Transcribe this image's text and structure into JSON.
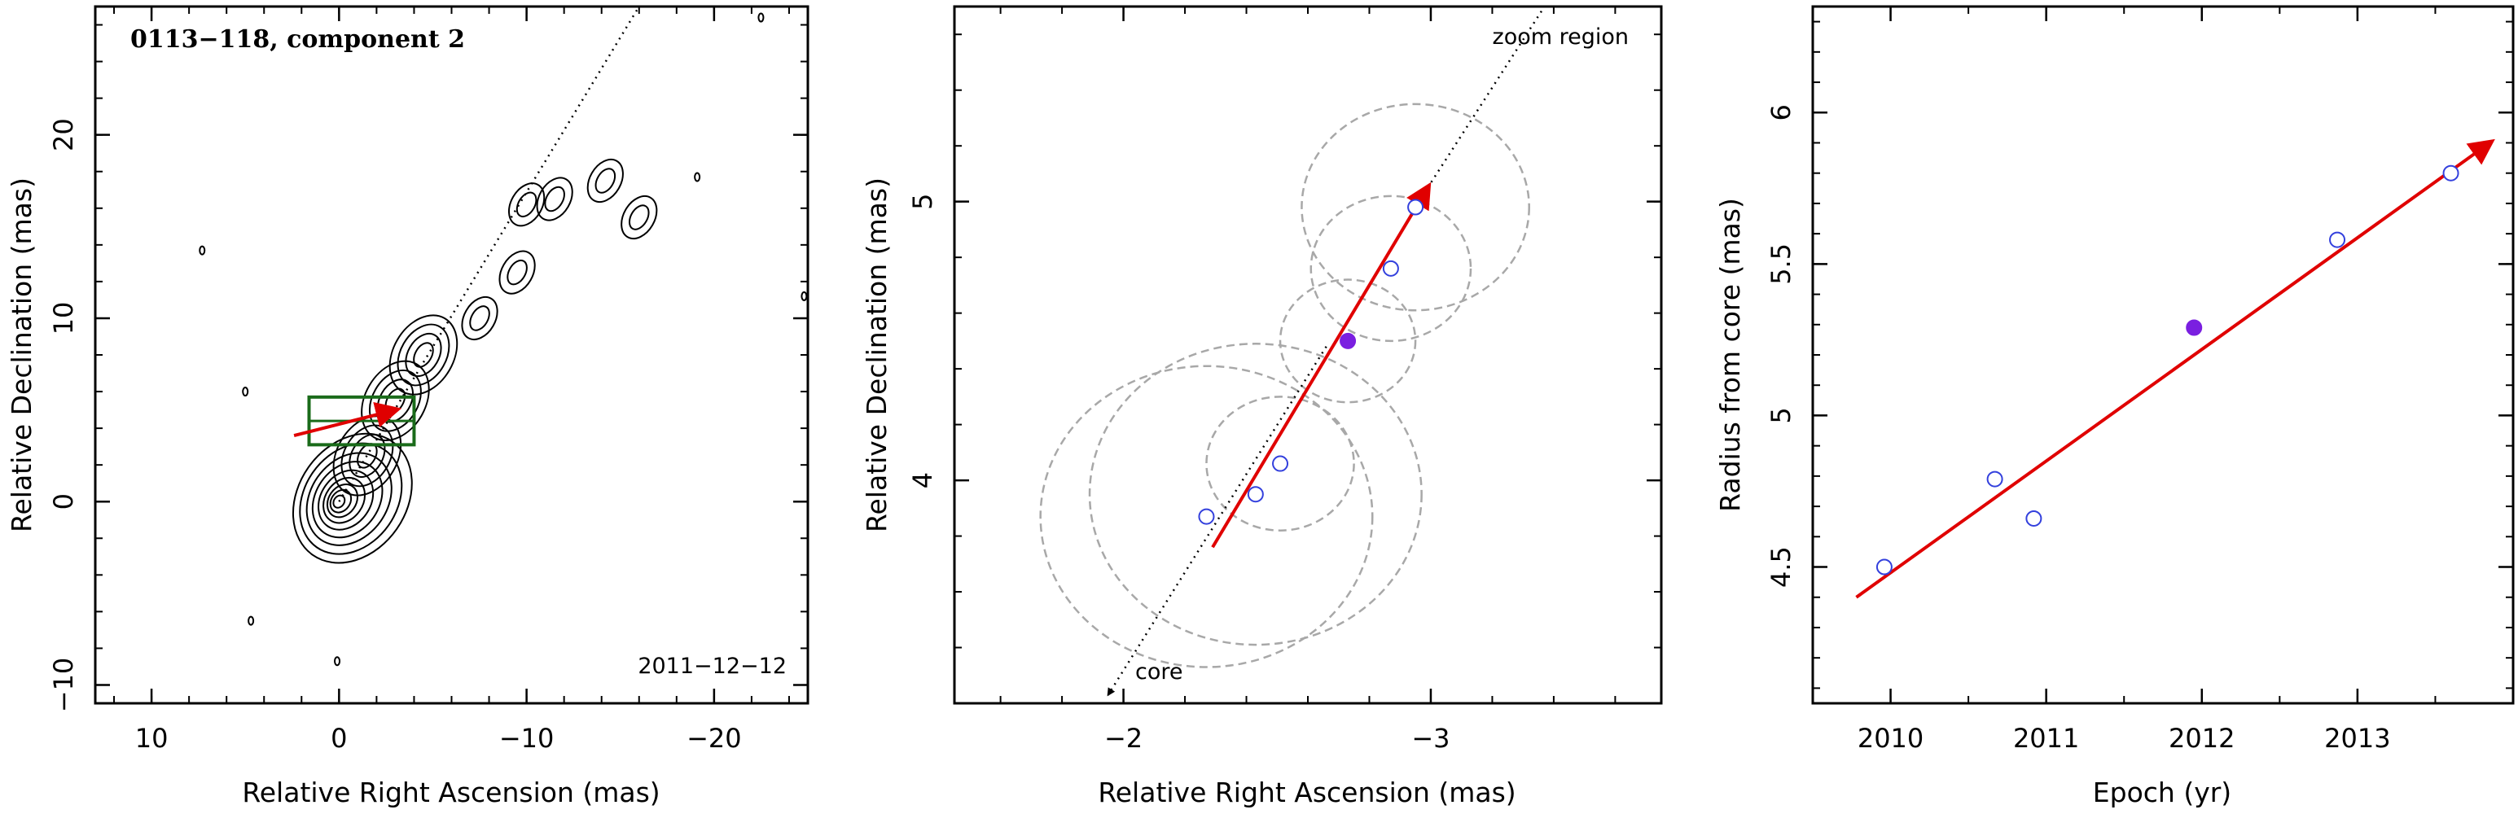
{
  "chart_data": [
    {
      "type": "contour",
      "title": "0113−118, component 2",
      "epoch_label": "2011−12−12",
      "xlabel": "Relative Right Ascension (mas)",
      "ylabel": "Relative Declination (mas)",
      "xlim": [
        13,
        -25
      ],
      "ylim": [
        -11,
        27
      ],
      "x_ticks": [
        10,
        0,
        -10,
        -20
      ],
      "x_tick_labels": [
        "10",
        "0",
        "−10",
        "−20"
      ],
      "y_ticks": [
        -10,
        0,
        10,
        20
      ],
      "y_tick_labels": [
        "−10",
        "0",
        "10",
        "20"
      ],
      "core_position": [
        0,
        0
      ],
      "jet_axis": {
        "from": [
          0,
          0
        ],
        "to": [
          -16,
          27
        ],
        "style": "dotted"
      },
      "zoom_box": {
        "x": [
          1.6,
          -4.0
        ],
        "y": [
          3.1,
          5.7
        ],
        "color": "#1a6b1a"
      },
      "component_arrow": {
        "from": [
          2.4,
          3.6
        ],
        "to": [
          -3.0,
          5.0
        ],
        "color": "#e00000"
      },
      "jet_features": [
        {
          "x": -1.5,
          "y": 2.5
        },
        {
          "x": -3,
          "y": 5.5
        },
        {
          "x": -4.5,
          "y": 8
        },
        {
          "x": -7.5,
          "y": 10
        },
        {
          "x": -9.5,
          "y": 12.5
        },
        {
          "x": -11.5,
          "y": 16.5
        },
        {
          "x": -14.2,
          "y": 17.5
        },
        {
          "x": -16,
          "y": 15.5
        },
        {
          "x": -10,
          "y": 16.2
        }
      ],
      "isolated_features": [
        {
          "x": 7.3,
          "y": 13.7
        },
        {
          "x": 5,
          "y": 6
        },
        {
          "x": 4.7,
          "y": -6.5
        },
        {
          "x": 0.1,
          "y": -8.7
        },
        {
          "x": -19.1,
          "y": 17.7
        },
        {
          "x": -22.5,
          "y": 26.4
        },
        {
          "x": -24.8,
          "y": 11.2
        }
      ]
    },
    {
      "type": "scatter",
      "title": "zoom region",
      "core_label": "core",
      "xlabel": "Relative Right Ascension (mas)",
      "ylabel": "Relative Declination (mas)",
      "xlim": [
        -1.45,
        -3.75
      ],
      "ylim": [
        3.2,
        5.7
      ],
      "x_ticks": [
        -2,
        -3
      ],
      "x_tick_labels": [
        "−2",
        "−3"
      ],
      "y_ticks": [
        4,
        5
      ],
      "y_tick_labels": [
        "4",
        "5"
      ],
      "points": [
        {
          "x": -2.27,
          "y": 3.87
        },
        {
          "x": -2.43,
          "y": 3.95
        },
        {
          "x": -2.51,
          "y": 4.06
        },
        {
          "x": -2.87,
          "y": 4.76
        },
        {
          "x": -2.95,
          "y": 4.98
        }
      ],
      "highlighted_point": {
        "x": -2.73,
        "y": 4.5
      },
      "error_circles": [
        {
          "x": -2.27,
          "y": 3.87,
          "r": 0.54
        },
        {
          "x": -2.43,
          "y": 3.95,
          "r": 0.54
        },
        {
          "x": -2.51,
          "y": 4.06,
          "r": 0.24
        },
        {
          "x": -2.73,
          "y": 4.5,
          "r": 0.22
        },
        {
          "x": -2.87,
          "y": 4.76,
          "r": 0.26
        },
        {
          "x": -2.95,
          "y": 4.98,
          "r": 0.37
        }
      ],
      "trend_arrow": {
        "from": [
          -2.29,
          3.76
        ],
        "to": [
          -2.99,
          5.05
        ],
        "color": "#e00000"
      },
      "jet_axis": {
        "from": [
          -2.66,
          4.48
        ],
        "to": [
          -1.95,
          3.23
        ],
        "style": "dotted"
      }
    },
    {
      "type": "scatter",
      "xlabel": "Epoch (yr)",
      "ylabel": "Radius from core (mas)",
      "xlim": [
        2009.5,
        2014.0
      ],
      "ylim": [
        4.05,
        6.35
      ],
      "x_ticks": [
        2010,
        2011,
        2012,
        2013
      ],
      "x_tick_labels": [
        "2010",
        "2011",
        "2012",
        "2013"
      ],
      "y_ticks": [
        4.5,
        5,
        5.5,
        6
      ],
      "y_tick_labels": [
        "4.5",
        "5",
        "5.5",
        "6"
      ],
      "points": [
        {
          "x": 2009.96,
          "y": 4.5
        },
        {
          "x": 2010.67,
          "y": 4.79
        },
        {
          "x": 2010.92,
          "y": 4.66
        },
        {
          "x": 2012.87,
          "y": 5.58
        },
        {
          "x": 2013.6,
          "y": 5.8
        }
      ],
      "highlighted_point": {
        "x": 2011.95,
        "y": 5.29
      },
      "trend_arrow": {
        "from": [
          2009.78,
          4.4
        ],
        "to": [
          2013.85,
          5.9
        ],
        "color": "#e00000"
      }
    }
  ],
  "colors": {
    "axis": "#000000",
    "contour": "#000000",
    "points": "#3340dd",
    "highlight": "#7a1fe0",
    "arrow": "#e00000",
    "zoom_box": "#1a6b1a",
    "error_circle": "#a8a8a8"
  }
}
